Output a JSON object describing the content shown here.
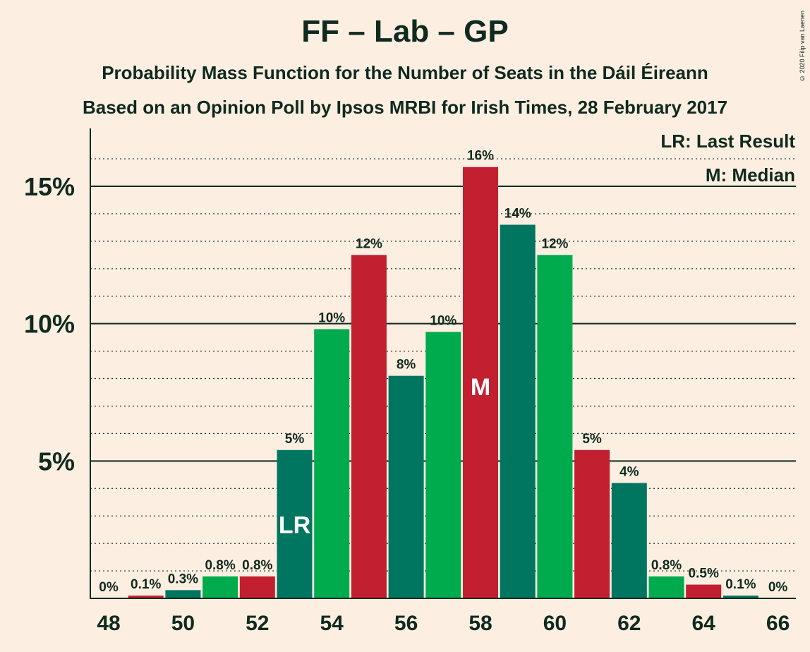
{
  "title": "FF – Lab – GP",
  "subtitle_1": "Probability Mass Function for the Number of Seats in the Dáil Éireann",
  "subtitle_2": "Based on an Opinion Poll by Ipsos MRBI for Irish Times, 28 February 2017",
  "copyright": "© 2020 Filip van Laenen",
  "legend": {
    "last_result": "LR: Last Result",
    "median": "M: Median"
  },
  "colors": {
    "background": "#FDEEE2",
    "dark_green": "#00755F",
    "green": "#00AB4E",
    "red": "#C21F30",
    "text": "#0F2A1E"
  },
  "chart_data": {
    "type": "bar",
    "x": [
      48,
      49,
      50,
      51,
      52,
      53,
      54,
      55,
      56,
      57,
      58,
      59,
      60,
      61,
      62,
      63,
      64,
      65,
      66
    ],
    "values": [
      0,
      0.1,
      0.3,
      0.8,
      0.8,
      5.4,
      9.8,
      12.5,
      8.1,
      9.7,
      15.7,
      13.6,
      12.5,
      5.4,
      4.2,
      0.8,
      0.5,
      0.1,
      0
    ],
    "labels": [
      "0%",
      "0.1%",
      "0.3%",
      "0.8%",
      "0.8%",
      "5%",
      "10%",
      "12%",
      "8%",
      "10%",
      "16%",
      "14%",
      "12%",
      "5%",
      "4%",
      "0.8%",
      "0.5%",
      "0.1%",
      "0%"
    ],
    "bar_colors": [
      "#00755F",
      "#C21F30",
      "#00755F",
      "#00AB4E",
      "#C21F30",
      "#00755F",
      "#00AB4E",
      "#C21F30",
      "#00755F",
      "#00AB4E",
      "#C21F30",
      "#00755F",
      "#00AB4E",
      "#C21F30",
      "#00755F",
      "#00AB4E",
      "#C21F30",
      "#00755F",
      "#00AB4E"
    ],
    "x_ticks": [
      48,
      50,
      52,
      54,
      56,
      58,
      60,
      62,
      64,
      66
    ],
    "y_ticks": [
      {
        "value": 5,
        "label": "5%"
      },
      {
        "value": 10,
        "label": "10%"
      },
      {
        "value": 15,
        "label": "15%"
      }
    ],
    "ylim": [
      0,
      17
    ],
    "minor_grid_step": 1,
    "last_result": {
      "x": 53,
      "label": "LR"
    },
    "median": {
      "x": 58,
      "label": "M"
    }
  }
}
